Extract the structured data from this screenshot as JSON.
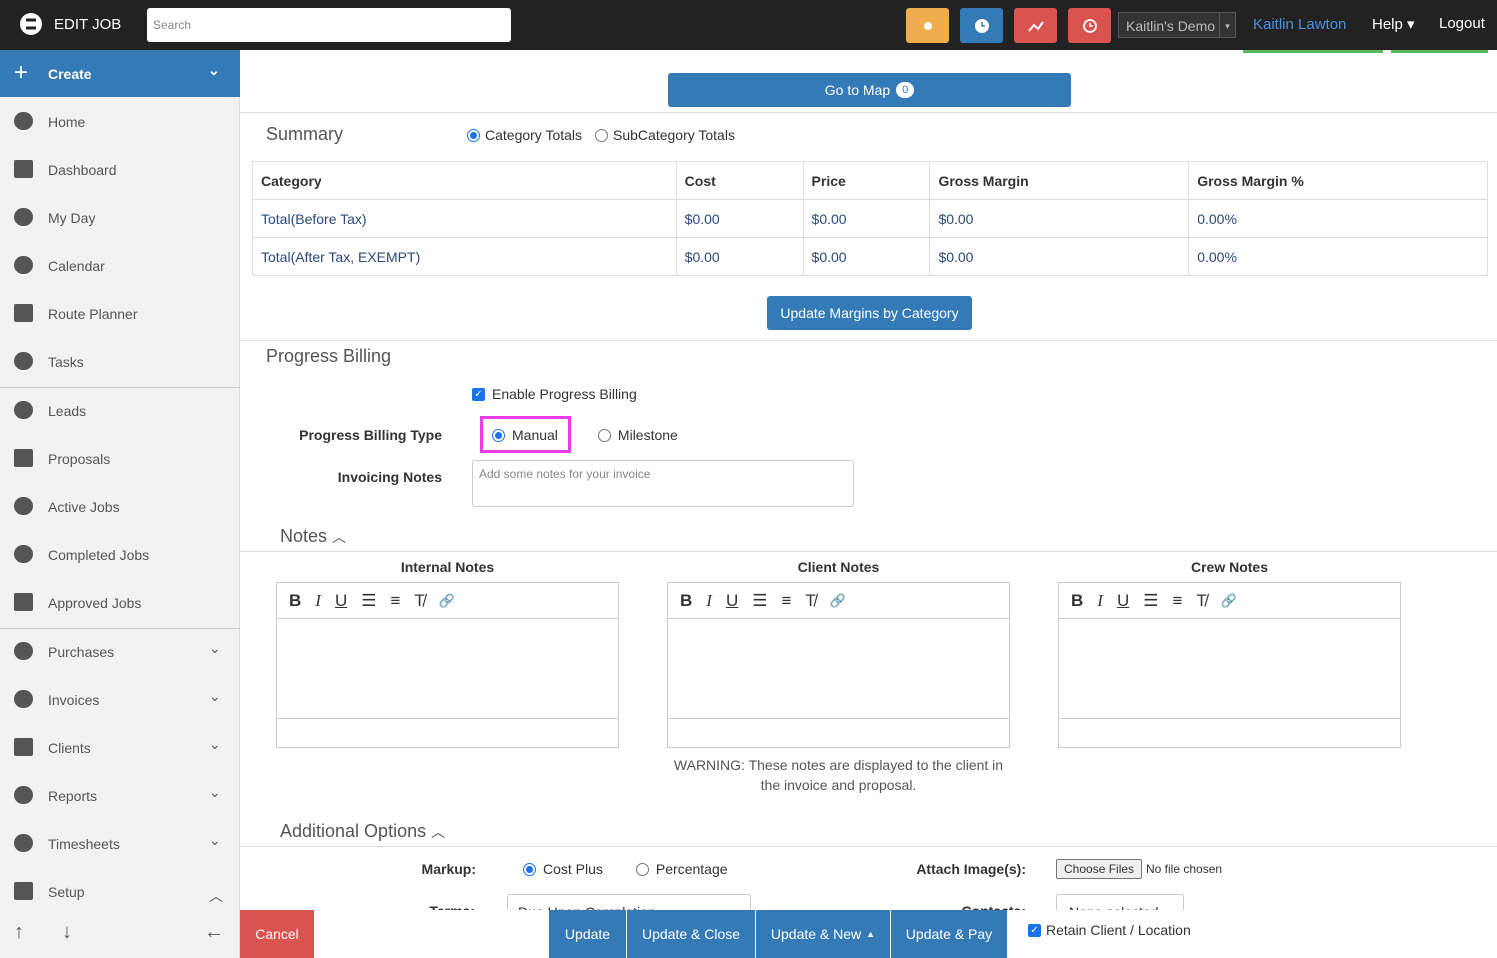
{
  "topbar": {
    "brand": "EDIT JOB",
    "search_placeholder": "Search",
    "account": "Kaitlin's Demo",
    "user": "Kaitlin Lawton",
    "help": "Help",
    "logout": "Logout"
  },
  "sidebar": {
    "create": "Create",
    "items": [
      "Home",
      "Dashboard",
      "My Day",
      "Calendar",
      "Route Planner",
      "Tasks",
      "Leads",
      "Proposals",
      "Active Jobs",
      "Completed Jobs",
      "Approved Jobs",
      "Purchases",
      "Invoices",
      "Clients",
      "Reports",
      "Timesheets",
      "Setup"
    ]
  },
  "map_button": {
    "label": "Go to Map",
    "count": 0
  },
  "summary": {
    "title": "Summary",
    "options": [
      "Category Totals",
      "SubCategory Totals"
    ],
    "table": {
      "header": [
        "Category",
        "Cost",
        "Price",
        "Gross Margin",
        "Gross Margin %"
      ],
      "rows": [
        [
          "Total(Before Tax)",
          "$0.00",
          "$0.00",
          "$0.00",
          "0.00%"
        ],
        [
          "Total(After Tax, EXEMPT)",
          "$0.00",
          "$0.00",
          "$0.00",
          "0.00%"
        ]
      ]
    },
    "update_button": "Update Margins by Category"
  },
  "progress_billing": {
    "title": "Progress Billing",
    "enable": "Enable Progress Billing",
    "type_label": "Progress Billing Type",
    "types": [
      "Manual",
      "Milestone"
    ],
    "notes_label": "Invoicing Notes",
    "notes_placeholder": "Add some notes for your invoice"
  },
  "notes": {
    "title": "Notes",
    "editors": [
      "Internal Notes",
      "Client Notes",
      "Crew Notes"
    ],
    "warning": "WARNING: These notes are displayed to the client in the invoice and proposal."
  },
  "additional_options": {
    "title": "Additional Options",
    "markup_label": "Markup:",
    "markup_options": [
      "Cost Plus",
      "Percentage"
    ],
    "attach_label": "Attach Image(s):",
    "choose_files": "Choose Files",
    "no_file": "No file chosen",
    "terms_label": "Terms:",
    "terms_value": "Due Upon Completion",
    "contacts_label": "Contacts:",
    "contacts_value": "None selected"
  },
  "footer": {
    "cancel": "Cancel",
    "buttons": [
      "Update",
      "Update & Close",
      "Update & New",
      "Update & Pay"
    ],
    "retain": "Retain Client / Location"
  }
}
